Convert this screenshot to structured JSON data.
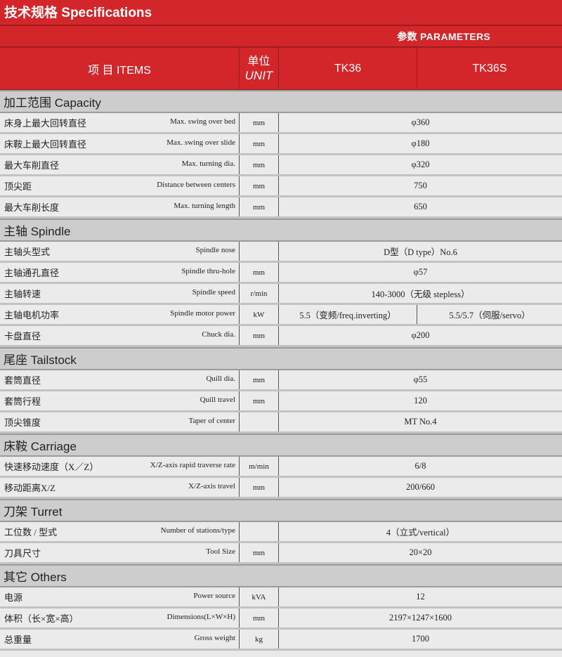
{
  "title": "技术规格  Specifications",
  "parameters": "参数 PARAMETERS",
  "header": {
    "items": "项  目   ITEMS",
    "unit_cn": "单位",
    "unit_en": "UNIT",
    "model1": "TK36",
    "model2": "TK36S"
  },
  "sections": [
    {
      "title": "加工范围 Capacity",
      "rows": [
        {
          "cn": "床身上最大回转直径",
          "en": "Max. swing over bed",
          "unit": "mm",
          "value": "φ360"
        },
        {
          "cn": "床鞍上最大回转直径",
          "en": "Max. swing over slide",
          "unit": "mm",
          "value": "φ180"
        },
        {
          "cn": "最大车削直径",
          "en": "Max. turning dia.",
          "unit": "mm",
          "value": "φ320"
        },
        {
          "cn": "顶尖距",
          "en": "Distance between centers",
          "unit": "mm",
          "value": "750"
        },
        {
          "cn": "最大车削长度",
          "en": "Max. turning length",
          "unit": "mm",
          "value": "650"
        }
      ]
    },
    {
      "title": "主轴 Spindle",
      "rows": [
        {
          "cn": "主轴头型式",
          "en": "Spindle nose",
          "unit": "",
          "value": "D型（D type）No.6"
        },
        {
          "cn": "主轴通孔直径",
          "en": "Spindle thru-hole",
          "unit": "mm",
          "value": "φ57"
        },
        {
          "cn": "主轴转速",
          "en": "Spindle speed",
          "unit": "r/min",
          "value": "140-3000（无级 stepless）"
        },
        {
          "cn": "主轴电机功率",
          "en": "Spindle  motor power",
          "unit": "kW",
          "value": "5.5（变频/freq.inverting）",
          "value2": "5.5/5.7（伺服/servo）"
        },
        {
          "cn": "卡盘直径",
          "en": "Chuck dia.",
          "unit": "mm",
          "value": "φ200"
        }
      ]
    },
    {
      "title": "尾座 Tailstock",
      "rows": [
        {
          "cn": "套筒直径",
          "en": "Quill dia.",
          "unit": "mm",
          "value": "φ55"
        },
        {
          "cn": "套筒行程",
          "en": "Quill travel",
          "unit": "mm",
          "value": "120"
        },
        {
          "cn": "顶尖锥度",
          "en": "Taper of center",
          "unit": "",
          "value": "MT No.4"
        }
      ]
    },
    {
      "title": "床鞍 Carriage",
      "rows": [
        {
          "cn": "快速移动速度（X／Z）",
          "en": "X/Z-axis rapid traverse rate",
          "unit": "m/min",
          "value": "6/8"
        },
        {
          "cn": "移动距离X/Z",
          "en": "X/Z-axis travel",
          "unit": "mm",
          "value": "200/660"
        }
      ]
    },
    {
      "title": "刀架 Turret",
      "rows": [
        {
          "cn": "工位数 / 型式",
          "en": "Number of stations/type",
          "unit": "",
          "value": "4（立式/vertical）"
        },
        {
          "cn": "刀具尺寸",
          "en": "Tool Size",
          "unit": "mm",
          "value": "20×20"
        }
      ]
    },
    {
      "title": "其它 Others",
      "rows": [
        {
          "cn": "电源",
          "en": "Power source",
          "unit": "kVA",
          "value": "12"
        },
        {
          "cn": "体积（长×宽×高）",
          "en": "Dimensions(L×W×H)",
          "unit": "mm",
          "value": "2197×1247×1600"
        },
        {
          "cn": "总重量",
          "en": "Gross weight",
          "unit": "kg",
          "value": "1700"
        }
      ]
    }
  ]
}
